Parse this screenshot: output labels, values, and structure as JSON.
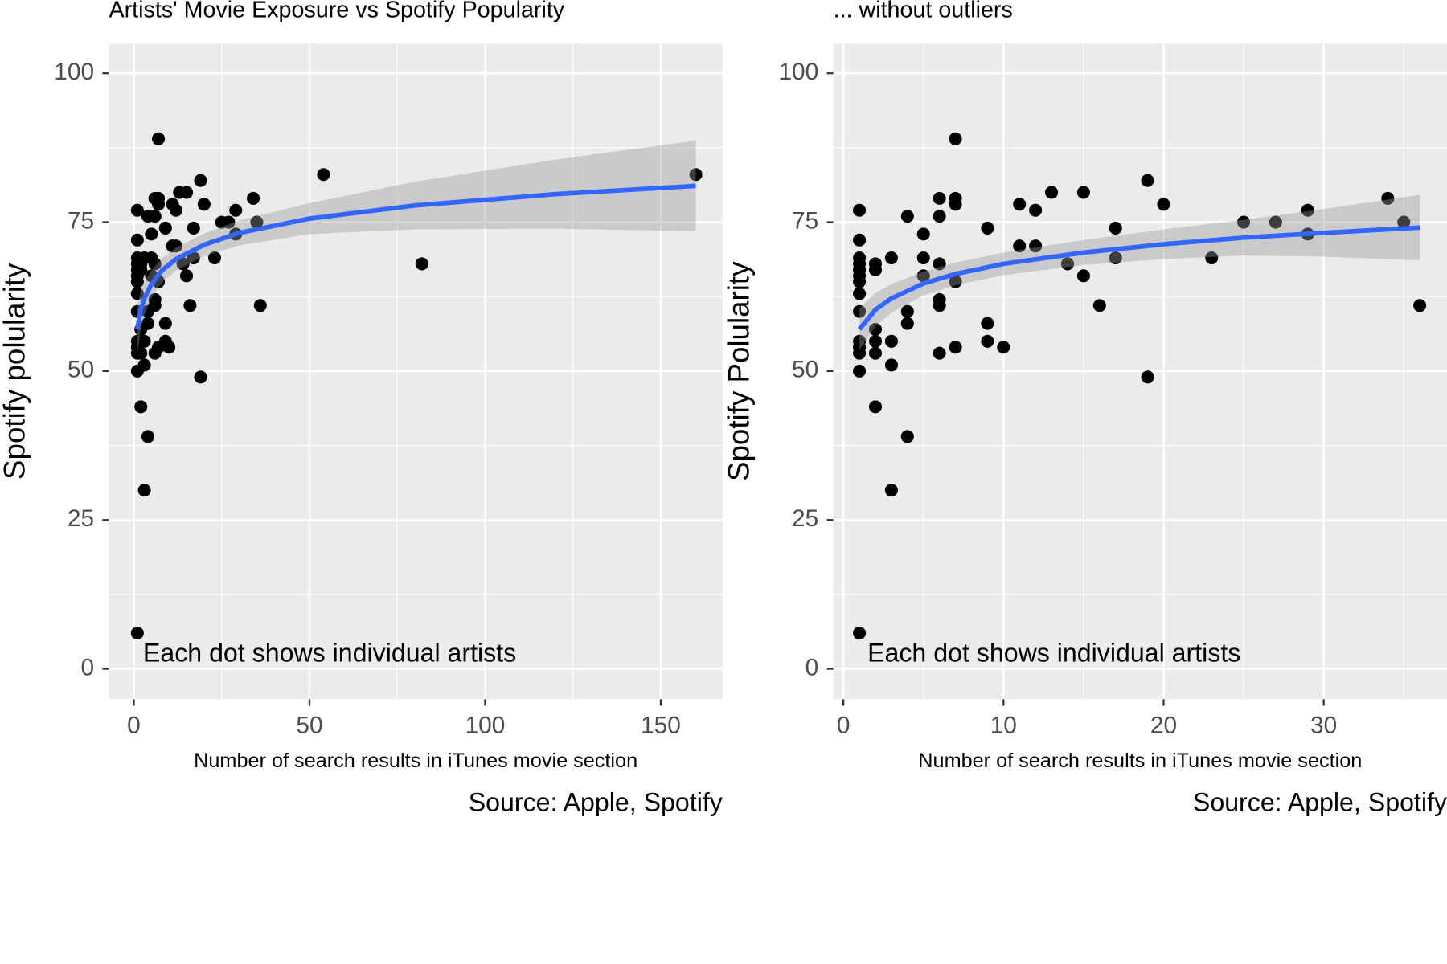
{
  "chart_data": [
    {
      "type": "scatter",
      "title": "Artists' Movie Exposure vs Spotify Popularity",
      "xlabel": "Number of search results in iTunes movie section",
      "ylabel": "Spotify polularity",
      "annotation": "Each dot shows individual artists",
      "caption": "Source: Apple, Spotify",
      "x": [
        1,
        1,
        1,
        1,
        1,
        1,
        1,
        1,
        1,
        1,
        1,
        1,
        1,
        1,
        2,
        2,
        2,
        2,
        2,
        2,
        3,
        3,
        3,
        3,
        4,
        4,
        4,
        4,
        5,
        5,
        5,
        6,
        6,
        6,
        6,
        6,
        6,
        7,
        7,
        7,
        7,
        7,
        9,
        9,
        9,
        10,
        11,
        11,
        12,
        12,
        13,
        14,
        15,
        15,
        16,
        17,
        17,
        19,
        19,
        20,
        23,
        25,
        27,
        29,
        29,
        34,
        35,
        36,
        54,
        82,
        160
      ],
      "y": [
        77,
        72,
        69,
        68,
        67,
        66,
        65,
        63,
        60,
        55,
        54,
        53,
        50,
        6,
        68,
        67,
        57,
        55,
        53,
        44,
        69,
        55,
        51,
        30,
        76,
        60,
        58,
        39,
        73,
        69,
        66,
        79,
        76,
        68,
        62,
        61,
        53,
        89,
        79,
        78,
        65,
        54,
        74,
        58,
        55,
        54,
        78,
        71,
        77,
        71,
        80,
        68,
        80,
        66,
        61,
        74,
        69,
        82,
        49,
        78,
        69,
        75,
        75,
        77,
        73,
        79,
        75,
        61,
        83,
        68,
        83
      ],
      "fit": {
        "x": [
          1,
          2,
          3,
          5,
          8,
          12,
          20,
          30,
          50,
          80,
          120,
          160
        ],
        "y": [
          57,
          60.3,
          62.2,
          64.6,
          66.9,
          68.8,
          71.2,
          73.2,
          75.6,
          77.8,
          79.7,
          81.1
        ],
        "lower": [
          53,
          57.1,
          59.4,
          62.3,
          64.9,
          66.9,
          69.3,
          71.1,
          73,
          73.8,
          73.9,
          73.5
        ],
        "upper": [
          61,
          63.5,
          65,
          66.9,
          68.9,
          70.7,
          73.1,
          75.3,
          78.2,
          81.8,
          85.5,
          88.7
        ]
      },
      "xlim": [
        -7.1,
        167.6
      ],
      "ylim": [
        -5.1,
        105
      ],
      "xticks": [
        0,
        50,
        100,
        150
      ],
      "yticks": [
        0,
        25,
        50,
        75,
        100
      ],
      "x_minor_grid": [
        25,
        75,
        125
      ],
      "y_minor_grid": [
        12.5,
        37.5,
        62.5,
        87.5
      ],
      "grid": true,
      "point_color": "#000000",
      "fit_color": "#3366ff",
      "band_color": "#999999"
    },
    {
      "type": "scatter",
      "title": "... without outliers",
      "xlabel": "Number of search results in iTunes movie section",
      "ylabel": "Spotify Polularity",
      "annotation": "Each dot shows individual artists",
      "caption": "Source: Apple, Spotify",
      "x": [
        1,
        1,
        1,
        1,
        1,
        1,
        1,
        1,
        1,
        1,
        1,
        1,
        1,
        1,
        2,
        2,
        2,
        2,
        2,
        2,
        3,
        3,
        3,
        3,
        4,
        4,
        4,
        4,
        5,
        5,
        5,
        6,
        6,
        6,
        6,
        6,
        6,
        7,
        7,
        7,
        7,
        7,
        9,
        9,
        9,
        10,
        11,
        11,
        12,
        12,
        13,
        14,
        15,
        15,
        16,
        17,
        17,
        19,
        19,
        20,
        23,
        25,
        27,
        29,
        29,
        34,
        35,
        36
      ],
      "y": [
        77,
        72,
        69,
        68,
        67,
        66,
        65,
        63,
        60,
        55,
        54,
        53,
        50,
        6,
        68,
        67,
        57,
        55,
        53,
        44,
        69,
        55,
        51,
        30,
        76,
        60,
        58,
        39,
        73,
        69,
        66,
        79,
        76,
        68,
        62,
        61,
        53,
        89,
        79,
        78,
        65,
        54,
        74,
        58,
        55,
        54,
        78,
        71,
        77,
        71,
        80,
        68,
        80,
        66,
        61,
        74,
        69,
        82,
        49,
        78,
        69,
        75,
        75,
        77,
        73,
        79,
        75,
        61
      ],
      "fit": {
        "x": [
          1,
          2,
          3,
          5,
          7,
          10,
          15,
          20,
          25,
          30,
          36
        ],
        "y": [
          57,
          60.3,
          62.2,
          64.7,
          66.3,
          68,
          69.9,
          71.3,
          72.4,
          73.2,
          74.1
        ],
        "lower": [
          53.5,
          57.5,
          59.8,
          62.7,
          64.4,
          66.1,
          67.8,
          68.8,
          69.4,
          69.2,
          68.6
        ],
        "upper": [
          60.5,
          63.1,
          64.6,
          66.7,
          68.2,
          69.9,
          72,
          73.8,
          75.4,
          77.2,
          79.6
        ]
      },
      "xlim": [
        -0.63,
        37.7
      ],
      "ylim": [
        -5.1,
        105
      ],
      "xticks": [
        0,
        10,
        20,
        30
      ],
      "yticks": [
        0,
        25,
        50,
        75,
        100
      ],
      "x_minor_grid": [
        5,
        15,
        25,
        35
      ],
      "y_minor_grid": [
        12.5,
        37.5,
        62.5,
        87.5
      ],
      "grid": true,
      "point_color": "#000000",
      "fit_color": "#3366ff",
      "band_color": "#999999"
    }
  ]
}
